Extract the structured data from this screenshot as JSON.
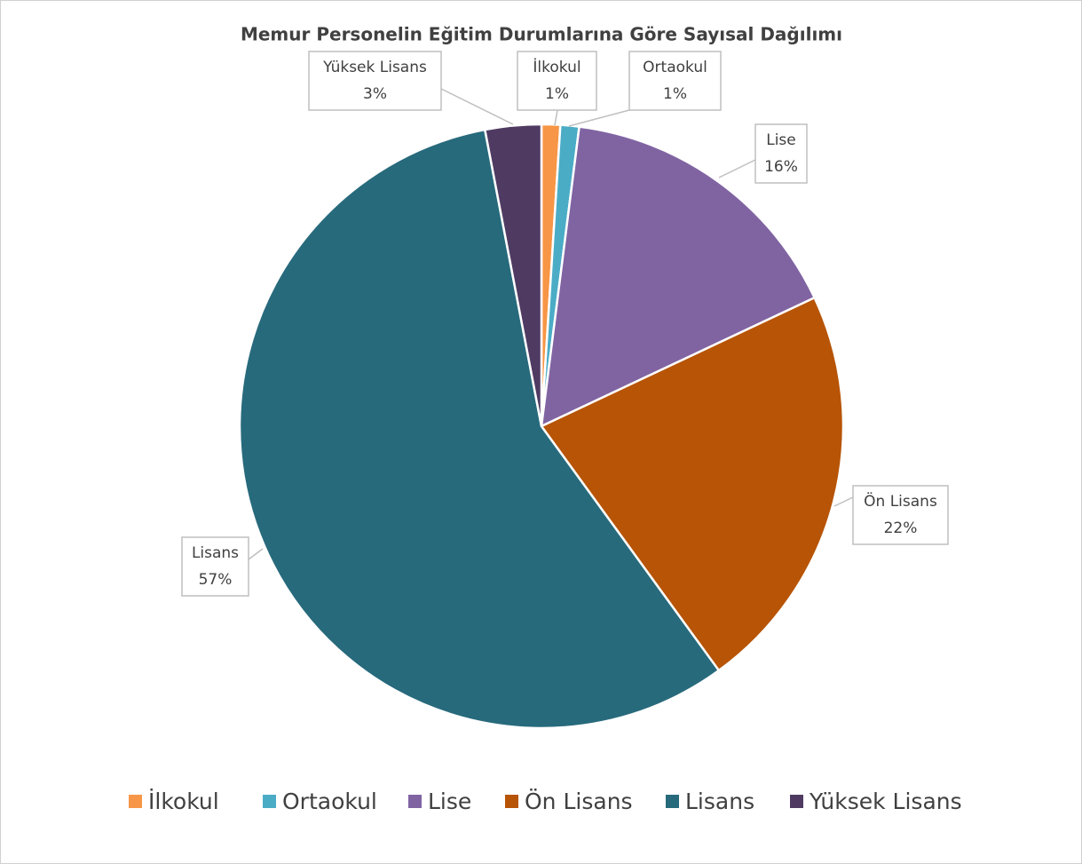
{
  "chart_data": {
    "type": "pie",
    "title": "Memur Personelin Eğitim Durumlarına Göre Sayısal Dağılımı",
    "categories": [
      "İlkokul",
      "Ortaokul",
      "Lise",
      "Ön Lisans",
      "Lisans",
      "Yüksek Lisans"
    ],
    "values": [
      1,
      1,
      16,
      22,
      57,
      3
    ],
    "value_labels": [
      "1%",
      "1%",
      "16%",
      "22%",
      "57%",
      "3%"
    ],
    "colors": [
      "#f79646",
      "#4bacc6",
      "#8064a2",
      "#b75406",
      "#276a7c",
      "#4f3b62"
    ],
    "legend": "bottom"
  }
}
